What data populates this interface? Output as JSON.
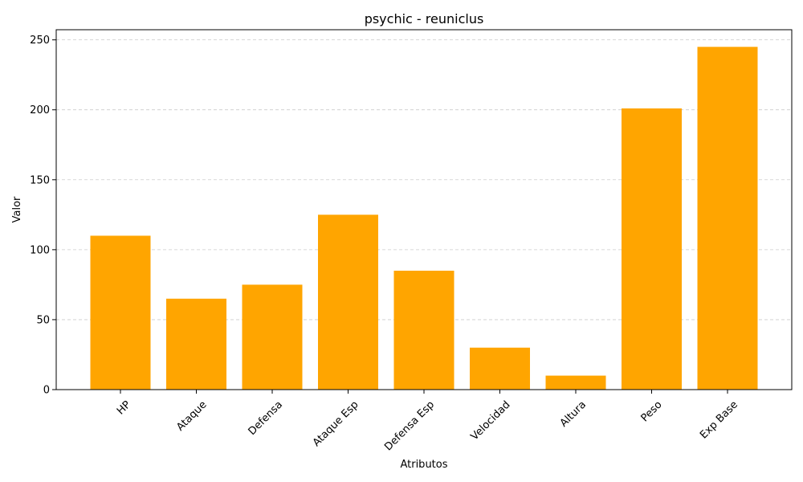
{
  "chart_data": {
    "type": "bar",
    "title": "psychic - reuniclus",
    "xlabel": "Atributos",
    "ylabel": "Valor",
    "categories": [
      "HP",
      "Ataque",
      "Defensa",
      "Ataque Esp",
      "Defensa Esp",
      "Velocidad",
      "Altura",
      "Peso",
      "Exp Base"
    ],
    "values": [
      110,
      65,
      75,
      125,
      85,
      30,
      10,
      201,
      245
    ],
    "ylim": [
      0,
      257.25
    ],
    "yticks": [
      "0",
      "50",
      "100",
      "150",
      "200",
      "250"
    ],
    "grid": "y-dashed",
    "bar_color": "#ffa500",
    "x_tick_rotation_deg": 45
  }
}
